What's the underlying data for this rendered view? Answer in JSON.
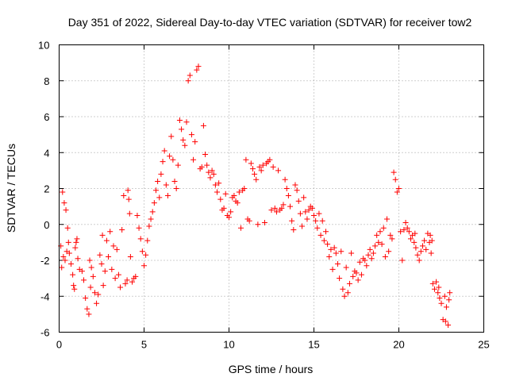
{
  "chart_data": {
    "type": "scatter",
    "title": "Day 351 of 2022, Sidereal Day-to-day VTEC variation (SDTVAR) for receiver tow2",
    "xlabel": "GPS time / hours",
    "ylabel": "SDTVAR / TECUs",
    "xlim": [
      0,
      25
    ],
    "ylim": [
      -6,
      10
    ],
    "xticks": [
      0,
      5,
      10,
      15,
      20,
      25
    ],
    "yticks": [
      -6,
      -4,
      -2,
      0,
      2,
      4,
      6,
      8,
      10
    ],
    "grid": true,
    "marker": "+",
    "color": "#ff0000",
    "series": [
      {
        "name": "SDTVAR",
        "points": [
          [
            0.1,
            -1.2
          ],
          [
            0.15,
            -2.4
          ],
          [
            0.2,
            1.8
          ],
          [
            0.25,
            -1.8
          ],
          [
            0.3,
            1.2
          ],
          [
            0.35,
            -2.0
          ],
          [
            0.4,
            0.8
          ],
          [
            0.45,
            -1.5
          ],
          [
            0.5,
            -0.2
          ],
          [
            0.55,
            -1.0
          ],
          [
            0.6,
            -1.6
          ],
          [
            0.7,
            -2.2
          ],
          [
            0.8,
            -2.8
          ],
          [
            0.85,
            -3.4
          ],
          [
            0.9,
            -3.6
          ],
          [
            0.95,
            -1.3
          ],
          [
            1.0,
            -1.0
          ],
          [
            1.05,
            -0.8
          ],
          [
            1.1,
            -1.9
          ],
          [
            1.2,
            -2.5
          ],
          [
            1.35,
            -2.6
          ],
          [
            1.45,
            -3.1
          ],
          [
            1.55,
            -4.1
          ],
          [
            1.65,
            -4.7
          ],
          [
            1.75,
            -5.0
          ],
          [
            1.8,
            -2.0
          ],
          [
            1.85,
            -3.5
          ],
          [
            1.9,
            -2.4
          ],
          [
            2.0,
            -2.9
          ],
          [
            2.1,
            -3.8
          ],
          [
            2.2,
            -4.4
          ],
          [
            2.3,
            -3.9
          ],
          [
            2.4,
            -1.7
          ],
          [
            2.5,
            -2.2
          ],
          [
            2.55,
            -0.6
          ],
          [
            2.6,
            -3.4
          ],
          [
            2.7,
            -2.6
          ],
          [
            2.8,
            -0.9
          ],
          [
            2.9,
            -1.8
          ],
          [
            3.0,
            -0.4
          ],
          [
            3.1,
            -2.5
          ],
          [
            3.2,
            -1.2
          ],
          [
            3.3,
            -3.0
          ],
          [
            3.4,
            -1.4
          ],
          [
            3.5,
            -2.8
          ],
          [
            3.6,
            -3.5
          ],
          [
            3.7,
            -0.3
          ],
          [
            3.8,
            1.6
          ],
          [
            3.9,
            -3.3
          ],
          [
            4.0,
            -3.1
          ],
          [
            4.05,
            1.9
          ],
          [
            4.1,
            1.4
          ],
          [
            4.15,
            0.6
          ],
          [
            4.2,
            -1.8
          ],
          [
            4.3,
            -3.2
          ],
          [
            4.4,
            -3.0
          ],
          [
            4.5,
            -2.9
          ],
          [
            4.6,
            0.5
          ],
          [
            4.7,
            -0.2
          ],
          [
            4.8,
            -0.8
          ],
          [
            4.9,
            -1.5
          ],
          [
            5.0,
            -2.3
          ],
          [
            5.1,
            -1.7
          ],
          [
            5.2,
            -0.9
          ],
          [
            5.3,
            -0.1
          ],
          [
            5.4,
            0.3
          ],
          [
            5.5,
            0.7
          ],
          [
            5.6,
            1.2
          ],
          [
            5.7,
            1.9
          ],
          [
            5.8,
            2.4
          ],
          [
            5.9,
            1.5
          ],
          [
            6.0,
            2.8
          ],
          [
            6.1,
            3.5
          ],
          [
            6.2,
            4.1
          ],
          [
            6.3,
            2.2
          ],
          [
            6.4,
            1.6
          ],
          [
            6.5,
            3.8
          ],
          [
            6.6,
            4.9
          ],
          [
            6.7,
            3.6
          ],
          [
            6.8,
            2.4
          ],
          [
            6.9,
            2.0
          ],
          [
            7.0,
            3.3
          ],
          [
            7.1,
            5.8
          ],
          [
            7.2,
            5.3
          ],
          [
            7.3,
            4.7
          ],
          [
            7.4,
            4.4
          ],
          [
            7.5,
            5.7
          ],
          [
            7.6,
            8.0
          ],
          [
            7.7,
            8.3
          ],
          [
            7.8,
            5.0
          ],
          [
            7.9,
            3.6
          ],
          [
            8.0,
            4.6
          ],
          [
            8.1,
            8.6
          ],
          [
            8.2,
            8.8
          ],
          [
            8.3,
            3.1
          ],
          [
            8.4,
            3.2
          ],
          [
            8.5,
            5.5
          ],
          [
            8.6,
            3.9
          ],
          [
            8.7,
            3.3
          ],
          [
            8.8,
            2.9
          ],
          [
            8.9,
            2.6
          ],
          [
            9.0,
            3.0
          ],
          [
            9.1,
            2.8
          ],
          [
            9.2,
            2.2
          ],
          [
            9.3,
            1.8
          ],
          [
            9.4,
            2.3
          ],
          [
            9.5,
            1.4
          ],
          [
            9.6,
            0.8
          ],
          [
            9.7,
            0.9
          ],
          [
            9.8,
            1.7
          ],
          [
            9.9,
            0.5
          ],
          [
            10.0,
            0.4
          ],
          [
            10.1,
            0.7
          ],
          [
            10.2,
            1.5
          ],
          [
            10.3,
            1.6
          ],
          [
            10.4,
            1.3
          ],
          [
            10.5,
            1.2
          ],
          [
            10.6,
            1.8
          ],
          [
            10.7,
            -0.2
          ],
          [
            10.8,
            1.9
          ],
          [
            10.9,
            2.0
          ],
          [
            11.0,
            3.6
          ],
          [
            11.1,
            0.3
          ],
          [
            11.2,
            0.2
          ],
          [
            11.3,
            3.4
          ],
          [
            11.4,
            3.1
          ],
          [
            11.5,
            2.8
          ],
          [
            11.6,
            2.5
          ],
          [
            11.7,
            0.0
          ],
          [
            11.8,
            3.2
          ],
          [
            11.9,
            3.0
          ],
          [
            12.0,
            3.3
          ],
          [
            12.1,
            0.1
          ],
          [
            12.2,
            3.4
          ],
          [
            12.3,
            3.5
          ],
          [
            12.4,
            3.6
          ],
          [
            12.5,
            0.8
          ],
          [
            12.6,
            3.2
          ],
          [
            12.7,
            0.9
          ],
          [
            12.8,
            0.7
          ],
          [
            12.9,
            3.0
          ],
          [
            13.0,
            0.8
          ],
          [
            13.1,
            0.9
          ],
          [
            13.2,
            1.1
          ],
          [
            13.3,
            2.5
          ],
          [
            13.4,
            2.0
          ],
          [
            13.5,
            1.6
          ],
          [
            13.6,
            1.0
          ],
          [
            13.7,
            0.2
          ],
          [
            13.8,
            -0.3
          ],
          [
            13.9,
            2.2
          ],
          [
            14.0,
            1.9
          ],
          [
            14.1,
            1.3
          ],
          [
            14.2,
            0.6
          ],
          [
            14.3,
            -0.1
          ],
          [
            14.4,
            1.5
          ],
          [
            14.5,
            0.7
          ],
          [
            14.6,
            0.3
          ],
          [
            14.7,
            0.8
          ],
          [
            14.8,
            1.0
          ],
          [
            14.9,
            0.9
          ],
          [
            15.0,
            0.5
          ],
          [
            15.1,
            0.2
          ],
          [
            15.2,
            -0.2
          ],
          [
            15.3,
            0.6
          ],
          [
            15.4,
            -0.6
          ],
          [
            15.5,
            0.2
          ],
          [
            15.6,
            -0.9
          ],
          [
            15.7,
            -0.4
          ],
          [
            15.8,
            -1.1
          ],
          [
            15.9,
            -1.8
          ],
          [
            16.0,
            -1.4
          ],
          [
            16.1,
            -2.5
          ],
          [
            16.2,
            -1.3
          ],
          [
            16.3,
            -1.6
          ],
          [
            16.4,
            -2.2
          ],
          [
            16.5,
            -3.0
          ],
          [
            16.6,
            -1.5
          ],
          [
            16.7,
            -3.6
          ],
          [
            16.8,
            -4.0
          ],
          [
            16.9,
            -2.4
          ],
          [
            17.0,
            -3.8
          ],
          [
            17.1,
            -3.3
          ],
          [
            17.2,
            -1.6
          ],
          [
            17.3,
            -2.9
          ],
          [
            17.4,
            -2.6
          ],
          [
            17.5,
            -2.7
          ],
          [
            17.6,
            -3.1
          ],
          [
            17.7,
            -2.1
          ],
          [
            17.8,
            -2.8
          ],
          [
            17.9,
            -1.9
          ],
          [
            18.0,
            -2.0
          ],
          [
            18.1,
            -2.3
          ],
          [
            18.2,
            -1.7
          ],
          [
            18.3,
            -1.4
          ],
          [
            18.4,
            -1.9
          ],
          [
            18.5,
            -1.6
          ],
          [
            18.6,
            -1.2
          ],
          [
            18.7,
            -0.6
          ],
          [
            18.8,
            -1.0
          ],
          [
            18.9,
            -0.4
          ],
          [
            19.0,
            -1.1
          ],
          [
            19.1,
            -0.2
          ],
          [
            19.2,
            -1.8
          ],
          [
            19.3,
            0.3
          ],
          [
            19.4,
            -1.5
          ],
          [
            19.5,
            -0.6
          ],
          [
            19.6,
            -0.8
          ],
          [
            19.7,
            2.9
          ],
          [
            19.8,
            2.5
          ],
          [
            19.9,
            1.8
          ],
          [
            20.0,
            2.0
          ],
          [
            20.1,
            -0.4
          ],
          [
            20.2,
            -2.0
          ],
          [
            20.3,
            -0.3
          ],
          [
            20.4,
            0.1
          ],
          [
            20.5,
            -0.2
          ],
          [
            20.6,
            -0.4
          ],
          [
            20.7,
            -0.8
          ],
          [
            20.8,
            -0.6
          ],
          [
            20.9,
            -1.0
          ],
          [
            21.0,
            -1.3
          ],
          [
            21.1,
            -1.7
          ],
          [
            21.2,
            -2.0
          ],
          [
            21.3,
            -1.5
          ],
          [
            21.4,
            -1.2
          ],
          [
            21.5,
            -0.9
          ],
          [
            21.6,
            -1.4
          ],
          [
            21.7,
            -0.5
          ],
          [
            21.8,
            -1.0
          ],
          [
            21.9,
            -1.6
          ],
          [
            22.0,
            -3.3
          ],
          [
            22.1,
            -3.6
          ],
          [
            22.2,
            -3.2
          ],
          [
            22.3,
            -3.8
          ],
          [
            22.4,
            -4.1
          ],
          [
            22.5,
            -4.4
          ],
          [
            22.6,
            -5.3
          ],
          [
            22.7,
            -4.0
          ],
          [
            22.8,
            -4.6
          ],
          [
            22.9,
            -5.6
          ],
          [
            23.0,
            -3.8
          ],
          [
            22.95,
            -4.2
          ],
          [
            22.75,
            -5.4
          ],
          [
            22.35,
            -3.5
          ],
          [
            21.95,
            -0.9
          ],
          [
            21.85,
            -0.6
          ],
          [
            20.95,
            -0.5
          ]
        ]
      }
    ]
  }
}
